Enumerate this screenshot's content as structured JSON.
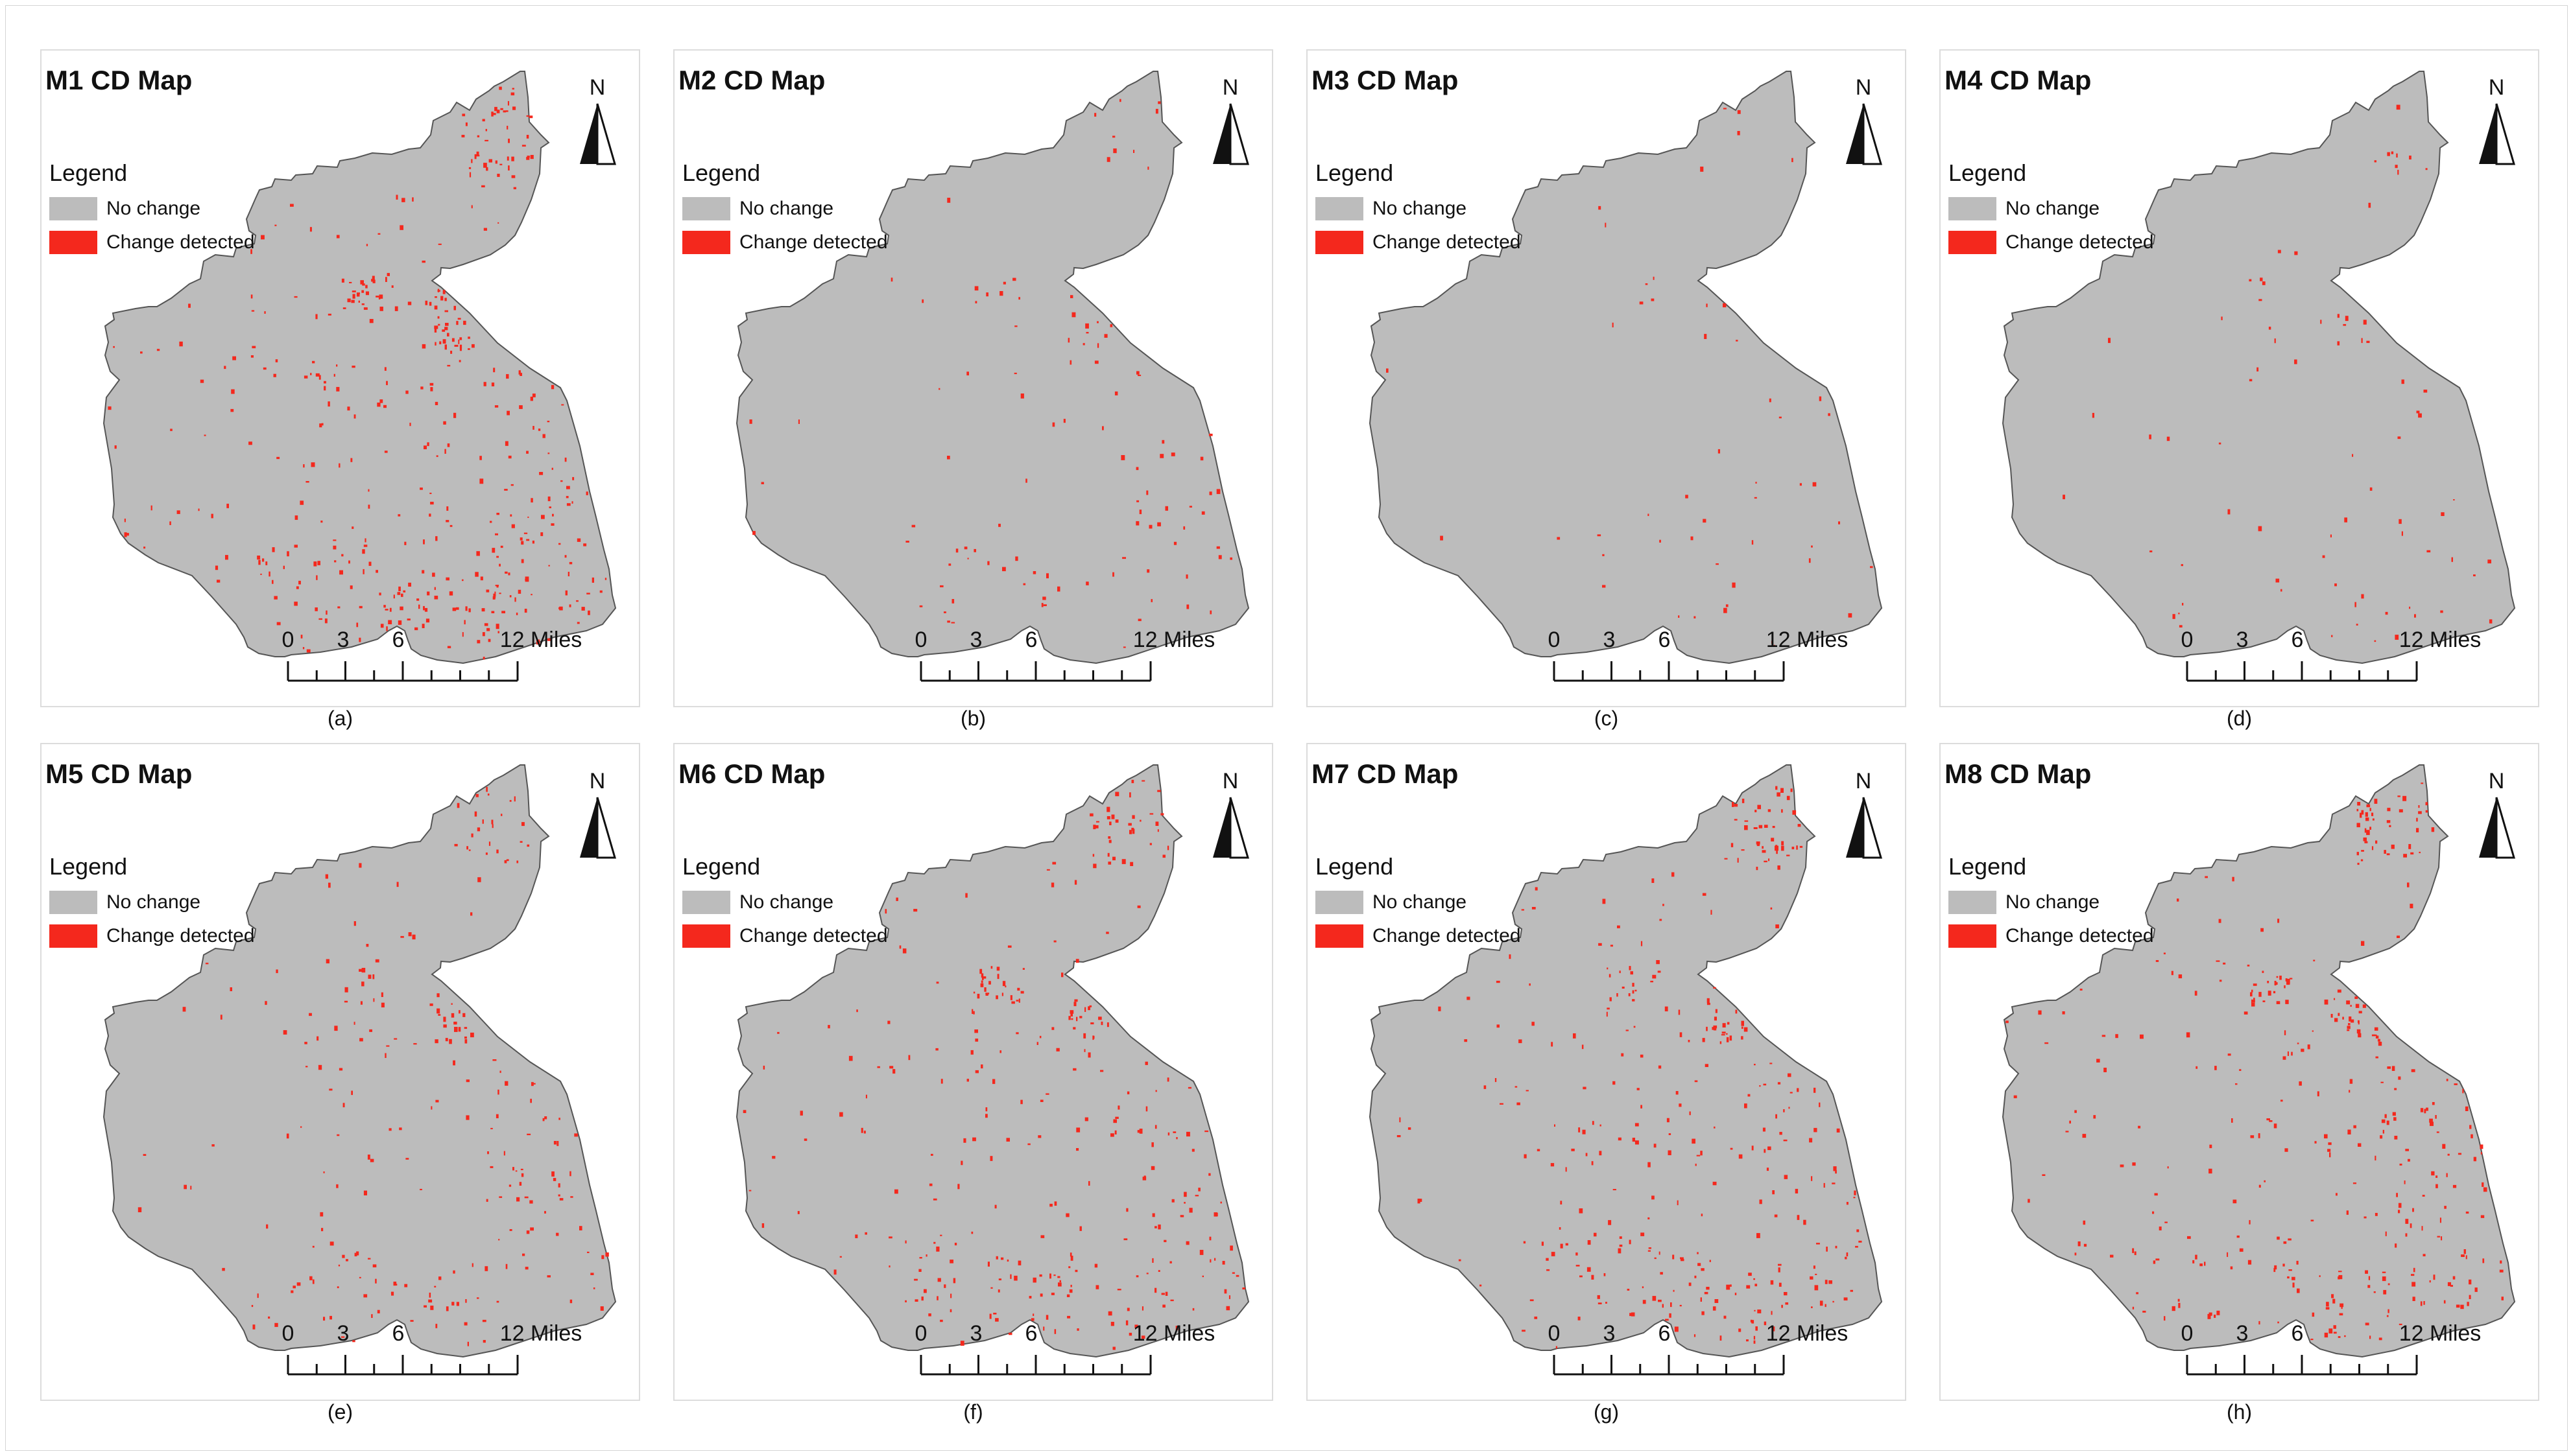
{
  "colors": {
    "no_change": "#bcbcbc",
    "change": "#f4281d",
    "boundary": "#555555"
  },
  "legend": {
    "title": "Legend",
    "items": [
      {
        "label": "No change",
        "color": "#bcbcbc"
      },
      {
        "label": "Change detected",
        "color": "#f4281d"
      }
    ]
  },
  "north_label": "N",
  "scale": {
    "ticks": [
      "0",
      "3",
      "6"
    ],
    "end_label": "12 Miles"
  },
  "panels": [
    {
      "title": "M1 CD Map",
      "caption": "(a)",
      "change_density": 1.0
    },
    {
      "title": "M2 CD Map",
      "caption": "(b)",
      "change_density": 0.25
    },
    {
      "title": "M3 CD Map",
      "caption": "(c)",
      "change_density": 0.12
    },
    {
      "title": "M4 CD Map",
      "caption": "(d)",
      "change_density": 0.18
    },
    {
      "title": "M5 CD Map",
      "caption": "(e)",
      "change_density": 0.55
    },
    {
      "title": "M6 CD Map",
      "caption": "(f)",
      "change_density": 0.75
    },
    {
      "title": "M7 CD Map",
      "caption": "(g)",
      "change_density": 0.8
    },
    {
      "title": "M8 CD Map",
      "caption": "(h)",
      "change_density": 0.85
    }
  ]
}
